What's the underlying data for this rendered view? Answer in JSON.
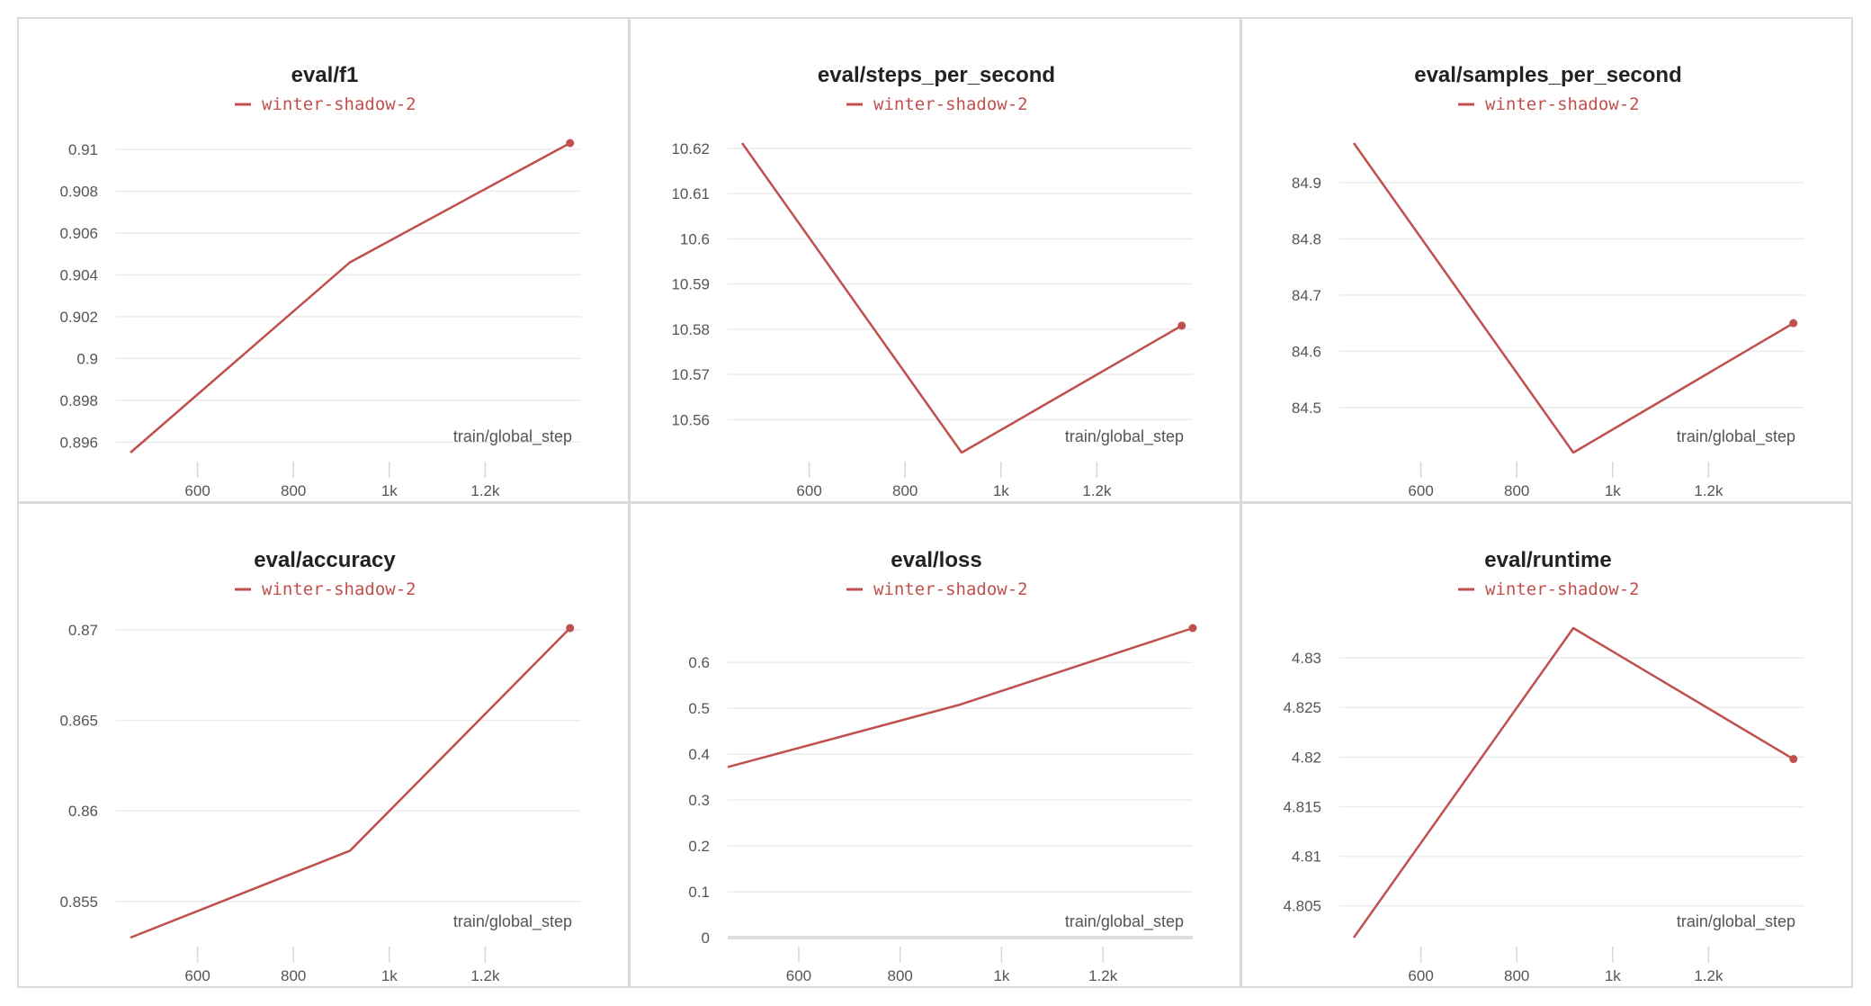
{
  "colors": {
    "series": "#c0504d",
    "grid": "#ececec",
    "tick": "#555555",
    "title": "#222222"
  },
  "chart_data": [
    {
      "type": "line",
      "title": "eval/f1",
      "xlabel": "train/global_step",
      "x_ticks": [
        600,
        800,
        1000,
        1200
      ],
      "x_tick_labels": [
        "600",
        "800",
        "1k",
        "1.2k"
      ],
      "xlim": [
        430,
        1400
      ],
      "y_ticks": [
        0.896,
        0.898,
        0.9,
        0.902,
        0.904,
        0.906,
        0.908,
        0.91
      ],
      "y_tick_labels": [
        "0.896",
        "0.898",
        "0.9",
        "0.902",
        "0.904",
        "0.906",
        "0.908",
        "0.91"
      ],
      "ylim": [
        0.8955,
        0.9103
      ],
      "series": [
        {
          "name": "winter-shadow-2",
          "x": [
            460,
            918,
            1377
          ],
          "y": [
            0.8955,
            0.9046,
            0.9103
          ]
        }
      ]
    },
    {
      "type": "line",
      "title": "eval/steps_per_second",
      "xlabel": "train/global_step",
      "x_ticks": [
        600,
        800,
        1000,
        1200
      ],
      "x_tick_labels": [
        "600",
        "800",
        "1k",
        "1.2k"
      ],
      "xlim": [
        430,
        1400
      ],
      "y_ticks": [
        10.56,
        10.57,
        10.58,
        10.59,
        10.6,
        10.61,
        10.62
      ],
      "y_tick_labels": [
        "10.56",
        "10.57",
        "10.58",
        "10.59",
        "10.6",
        "10.61",
        "10.62"
      ],
      "ylim": [
        10.5527,
        10.6212
      ],
      "series": [
        {
          "name": "winter-shadow-2",
          "x": [
            460,
            918,
            1377
          ],
          "y": [
            10.6212,
            10.5527,
            10.5808
          ]
        }
      ]
    },
    {
      "type": "line",
      "title": "eval/samples_per_second",
      "xlabel": "train/global_step",
      "x_ticks": [
        600,
        800,
        1000,
        1200
      ],
      "x_tick_labels": [
        "600",
        "800",
        "1k",
        "1.2k"
      ],
      "xlim": [
        430,
        1400
      ],
      "y_ticks": [
        84.5,
        84.6,
        84.7,
        84.8,
        84.9
      ],
      "y_tick_labels": [
        "84.5",
        "84.6",
        "84.7",
        "84.8",
        "84.9"
      ],
      "ylim": [
        84.42,
        84.97
      ],
      "series": [
        {
          "name": "winter-shadow-2",
          "x": [
            460,
            918,
            1377
          ],
          "y": [
            84.97,
            84.42,
            84.65
          ]
        }
      ]
    },
    {
      "type": "line",
      "title": "eval/accuracy",
      "xlabel": "train/global_step",
      "x_ticks": [
        600,
        800,
        1000,
        1200
      ],
      "x_tick_labels": [
        "600",
        "800",
        "1k",
        "1.2k"
      ],
      "xlim": [
        430,
        1400
      ],
      "y_ticks": [
        0.855,
        0.86,
        0.865,
        0.87
      ],
      "y_tick_labels": [
        "0.855",
        "0.86",
        "0.865",
        "0.87"
      ],
      "ylim": [
        0.853,
        0.8701
      ],
      "series": [
        {
          "name": "winter-shadow-2",
          "x": [
            460,
            918,
            1377
          ],
          "y": [
            0.853,
            0.8578,
            0.8701
          ]
        }
      ]
    },
    {
      "type": "line",
      "title": "eval/loss",
      "xlabel": "train/global_step",
      "x_ticks": [
        600,
        800,
        1000,
        1200
      ],
      "x_tick_labels": [
        "600",
        "800",
        "1k",
        "1.2k"
      ],
      "xlim": [
        460,
        1377
      ],
      "y_ticks": [
        0,
        0.1,
        0.2,
        0.3,
        0.4,
        0.5,
        0.6
      ],
      "y_tick_labels": [
        "0",
        "0.1",
        "0.2",
        "0.3",
        "0.4",
        "0.5",
        "0.6"
      ],
      "ylim": [
        0,
        0.675
      ],
      "series": [
        {
          "name": "winter-shadow-2",
          "x": [
            460,
            918,
            1377
          ],
          "y": [
            0.372,
            0.508,
            0.675
          ]
        }
      ]
    },
    {
      "type": "line",
      "title": "eval/runtime",
      "xlabel": "train/global_step",
      "x_ticks": [
        600,
        800,
        1000,
        1200
      ],
      "x_tick_labels": [
        "600",
        "800",
        "1k",
        "1.2k"
      ],
      "xlim": [
        430,
        1400
      ],
      "y_ticks": [
        4.805,
        4.81,
        4.815,
        4.82,
        4.825,
        4.83
      ],
      "y_tick_labels": [
        "4.805",
        "4.81",
        "4.815",
        "4.82",
        "4.825",
        "4.83"
      ],
      "ylim": [
        4.8018,
        4.833
      ],
      "series": [
        {
          "name": "winter-shadow-2",
          "x": [
            460,
            918,
            1377
          ],
          "y": [
            4.8018,
            4.833,
            4.8198
          ]
        }
      ]
    }
  ]
}
